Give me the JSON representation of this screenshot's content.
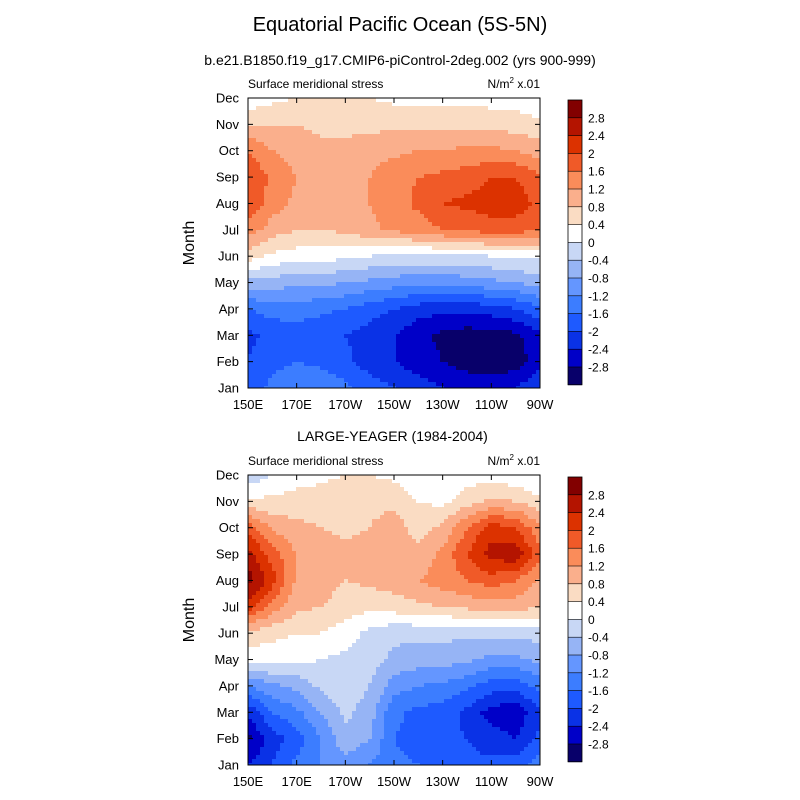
{
  "title": "Equatorial Pacific Ocean (5S-5N)",
  "subtitle": "b.e21.B1850.f19_g17.CMIP6-piControl-2deg.002 (yrs 900-999)",
  "panel2_title": "LARGE-YEAGER (1984-2004)",
  "chart_data": [
    {
      "type": "heatmap",
      "title": "b.e21.B1850.f19_g17.CMIP6-piControl-2deg.002 (yrs 900-999)",
      "left_label": "Surface meridional stress",
      "right_label": "N/m",
      "right_label_sup": "2",
      "right_label_suffix": " x.01",
      "ylabel": "Month",
      "xlabel": "",
      "x_ticks": [
        "150E",
        "170E",
        "170W",
        "150W",
        "130W",
        "110W",
        "90W"
      ],
      "x_tick_values": [
        150,
        170,
        190,
        210,
        230,
        250,
        270
      ],
      "xlim": [
        150,
        270
      ],
      "y_ticks": [
        "Jan",
        "Feb",
        "Mar",
        "Apr",
        "May",
        "Jun",
        "Jul",
        "Aug",
        "Sep",
        "Oct",
        "Nov",
        "Dec"
      ],
      "ylim": [
        0,
        11
      ],
      "x": [
        150,
        160,
        170,
        180,
        190,
        200,
        210,
        220,
        230,
        240,
        250,
        260,
        270
      ],
      "values": [
        [
          -1.8,
          -1.5,
          -1.3,
          -1.3,
          -1.5,
          -1.8,
          -2.0,
          -2.2,
          -2.4,
          -2.5,
          -2.5,
          -2.4,
          -2.0
        ],
        [
          -2.0,
          -1.7,
          -1.6,
          -1.7,
          -1.9,
          -2.2,
          -2.4,
          -2.6,
          -2.8,
          -3.0,
          -3.1,
          -3.0,
          -2.6
        ],
        [
          -2.1,
          -1.9,
          -1.8,
          -1.9,
          -2.0,
          -2.2,
          -2.4,
          -2.7,
          -2.9,
          -3.0,
          -3.0,
          -2.9,
          -2.5
        ],
        [
          -1.6,
          -1.4,
          -1.4,
          -1.5,
          -1.6,
          -1.8,
          -2.0,
          -2.2,
          -2.3,
          -2.3,
          -2.2,
          -2.0,
          -1.7
        ],
        [
          -0.5,
          -0.6,
          -0.7,
          -0.7,
          -0.8,
          -0.9,
          -1.0,
          -1.1,
          -1.1,
          -1.0,
          -0.9,
          -0.8,
          -0.6
        ],
        [
          0.6,
          0.3,
          0.2,
          0.2,
          0.1,
          0.0,
          -0.1,
          -0.1,
          -0.1,
          -0.1,
          0.0,
          0.1,
          0.1
        ],
        [
          1.4,
          1.0,
          0.8,
          0.8,
          0.9,
          1.1,
          1.3,
          1.4,
          1.6,
          1.7,
          1.8,
          1.8,
          1.6
        ],
        [
          2.0,
          1.4,
          1.1,
          1.0,
          1.1,
          1.2,
          1.4,
          1.7,
          2.0,
          2.1,
          2.2,
          2.2,
          1.9
        ],
        [
          2.0,
          1.5,
          1.2,
          1.1,
          1.1,
          1.2,
          1.5,
          1.6,
          1.7,
          1.8,
          2.0,
          2.0,
          1.7
        ],
        [
          1.6,
          1.2,
          1.0,
          0.9,
          0.9,
          1.0,
          1.1,
          1.2,
          1.2,
          1.3,
          1.3,
          1.2,
          1.0
        ],
        [
          0.8,
          0.8,
          0.8,
          0.7,
          0.7,
          0.7,
          0.7,
          0.7,
          0.7,
          0.7,
          0.7,
          0.6,
          0.5
        ],
        [
          0.1,
          0.3,
          0.4,
          0.4,
          0.4,
          0.4,
          0.3,
          0.3,
          0.3,
          0.3,
          0.2,
          0.2,
          0.1
        ]
      ]
    },
    {
      "type": "heatmap",
      "title": "LARGE-YEAGER (1984-2004)",
      "left_label": "Surface meridional stress",
      "right_label": "N/m",
      "right_label_sup": "2",
      "right_label_suffix": " x.01",
      "ylabel": "Month",
      "xlabel": "",
      "x_ticks": [
        "150E",
        "170E",
        "170W",
        "150W",
        "130W",
        "110W",
        "90W"
      ],
      "x_tick_values": [
        150,
        170,
        190,
        210,
        230,
        250,
        270
      ],
      "xlim": [
        150,
        270
      ],
      "y_ticks": [
        "Jan",
        "Feb",
        "Mar",
        "Apr",
        "May",
        "Jun",
        "Jul",
        "Aug",
        "Sep",
        "Oct",
        "Nov",
        "Dec"
      ],
      "ylim": [
        0,
        11
      ],
      "x": [
        150,
        160,
        170,
        180,
        190,
        200,
        210,
        220,
        230,
        240,
        250,
        260,
        270
      ],
      "values": [
        [
          -2.4,
          -2.0,
          -1.5,
          -1.2,
          -1.0,
          -1.2,
          -1.5,
          -1.6,
          -1.8,
          -1.9,
          -1.9,
          -1.8,
          -1.4
        ],
        [
          -2.9,
          -2.2,
          -1.8,
          -1.2,
          -0.5,
          -0.8,
          -1.6,
          -1.8,
          -1.9,
          -2.0,
          -2.2,
          -2.4,
          -1.9
        ],
        [
          -2.3,
          -1.6,
          -1.3,
          -0.8,
          -0.3,
          -0.6,
          -1.5,
          -1.7,
          -1.8,
          -2.1,
          -2.6,
          -2.7,
          -2.1
        ],
        [
          -1.2,
          -0.9,
          -0.7,
          -0.3,
          -0.1,
          -0.4,
          -1.0,
          -1.2,
          -1.3,
          -1.5,
          -1.8,
          -1.8,
          -1.5
        ],
        [
          0.1,
          0.2,
          0.1,
          0.0,
          -0.1,
          -0.2,
          -0.5,
          -0.6,
          -0.6,
          -0.7,
          -0.9,
          -0.9,
          -0.7
        ],
        [
          0.7,
          0.5,
          0.4,
          0.4,
          0.2,
          -0.1,
          -0.3,
          -0.3,
          -0.3,
          -0.3,
          -0.3,
          -0.3,
          -0.2
        ],
        [
          2.2,
          1.4,
          0.9,
          0.8,
          0.6,
          0.5,
          0.6,
          0.7,
          0.8,
          0.9,
          1.0,
          1.0,
          0.8
        ],
        [
          3.0,
          2.2,
          1.1,
          1.0,
          0.8,
          0.9,
          1.0,
          1.2,
          1.4,
          1.6,
          1.8,
          1.6,
          1.1
        ],
        [
          2.6,
          1.8,
          1.2,
          1.0,
          0.9,
          1.0,
          1.1,
          0.9,
          1.3,
          2.0,
          2.6,
          2.7,
          1.7
        ],
        [
          1.8,
          1.1,
          0.9,
          0.8,
          0.7,
          0.8,
          1.0,
          0.6,
          0.9,
          1.6,
          2.2,
          2.0,
          1.3
        ],
        [
          0.5,
          0.5,
          0.6,
          0.6,
          0.7,
          0.7,
          0.7,
          0.4,
          0.3,
          0.6,
          0.9,
          0.8,
          0.5
        ],
        [
          -0.3,
          0.0,
          0.2,
          0.3,
          0.4,
          0.4,
          0.3,
          0.0,
          0.1,
          0.2,
          0.2,
          0.1,
          0.0
        ]
      ]
    }
  ],
  "colorbar": {
    "labels": [
      "2.8",
      "2.4",
      "2",
      "1.6",
      "1.2",
      "0.8",
      "0.4",
      "0",
      "-0.4",
      "-0.8",
      "-1.2",
      "-1.6",
      "-2",
      "-2.4",
      "-2.8"
    ],
    "levels": [
      -2.8,
      -2.4,
      -2.0,
      -1.6,
      -1.2,
      -0.8,
      -0.4,
      0,
      0.4,
      0.8,
      1.2,
      1.6,
      2.0,
      2.4,
      2.8
    ],
    "colors": [
      "#08006a",
      "#0000c8",
      "#0a32e6",
      "#1e5aff",
      "#3c7dff",
      "#6496ff",
      "#96b4f5",
      "#c8d7f5",
      "#ffffff",
      "#fadcc3",
      "#faaf8c",
      "#fa8c5a",
      "#f05a28",
      "#dc3200",
      "#b41400",
      "#820000"
    ]
  }
}
